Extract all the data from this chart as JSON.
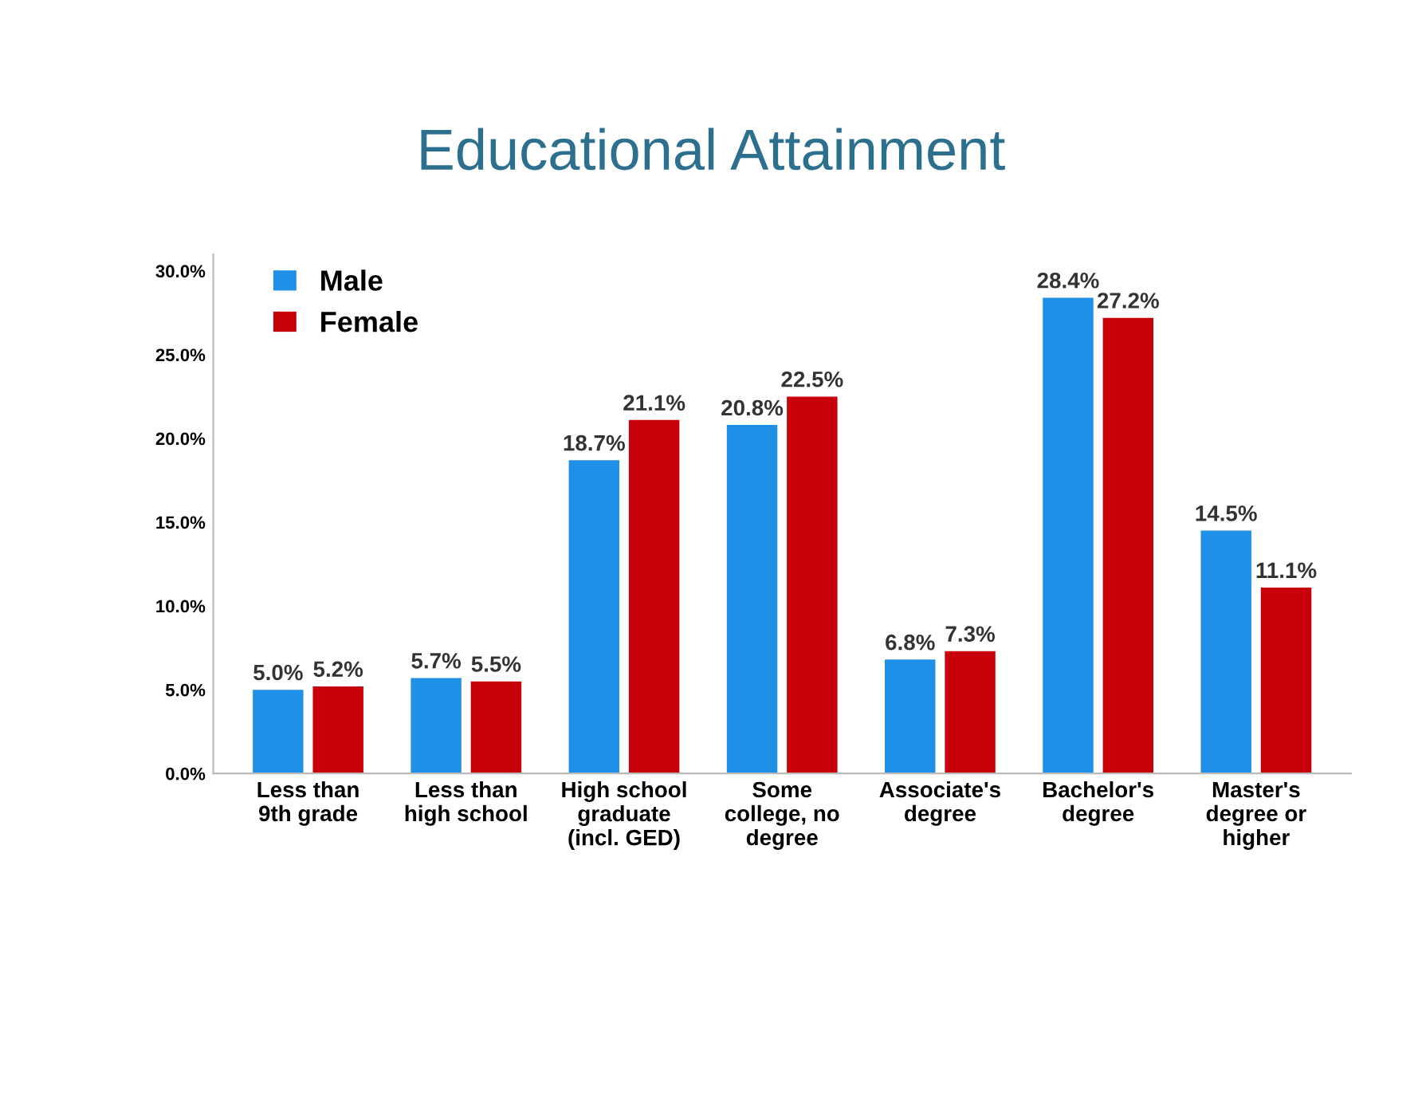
{
  "chart_data": {
    "type": "bar",
    "title": "Educational Attainment",
    "categories": [
      "Less than\n9th grade",
      "Less than\nhigh school",
      "High school\ngraduate\n(incl. GED)",
      "Some\ncollege, no\ndegree",
      "Associate's\ndegree",
      "Bachelor's\ndegree",
      "Master's\ndegree or\nhigher"
    ],
    "series": [
      {
        "name": "Male",
        "color": "#1e90e8",
        "values": [
          5.0,
          5.7,
          18.7,
          20.8,
          6.8,
          28.4,
          14.5
        ],
        "value_labels": [
          "5.0%",
          "5.7%",
          "18.7%",
          "20.8%",
          "6.8%",
          "28.4%",
          "14.5%"
        ]
      },
      {
        "name": "Female",
        "color": "#c8000a",
        "values": [
          5.2,
          5.5,
          21.1,
          22.5,
          7.3,
          27.2,
          11.1
        ],
        "value_labels": [
          "5.2%",
          "5.5%",
          "21.1%",
          "22.5%",
          "7.3%",
          "27.2%",
          "11.1%"
        ]
      }
    ],
    "ylim": [
      0,
      31
    ],
    "yticks": [
      {
        "value": 0,
        "label": "0.0%"
      },
      {
        "value": 5,
        "label": "5.0%"
      },
      {
        "value": 10,
        "label": "10.0%"
      },
      {
        "value": 15,
        "label": "15.0%"
      },
      {
        "value": 20,
        "label": "20.0%"
      },
      {
        "value": 25,
        "label": "25.0%"
      },
      {
        "value": 30,
        "label": "30.0%"
      }
    ],
    "grid": false,
    "legend": "top left"
  }
}
